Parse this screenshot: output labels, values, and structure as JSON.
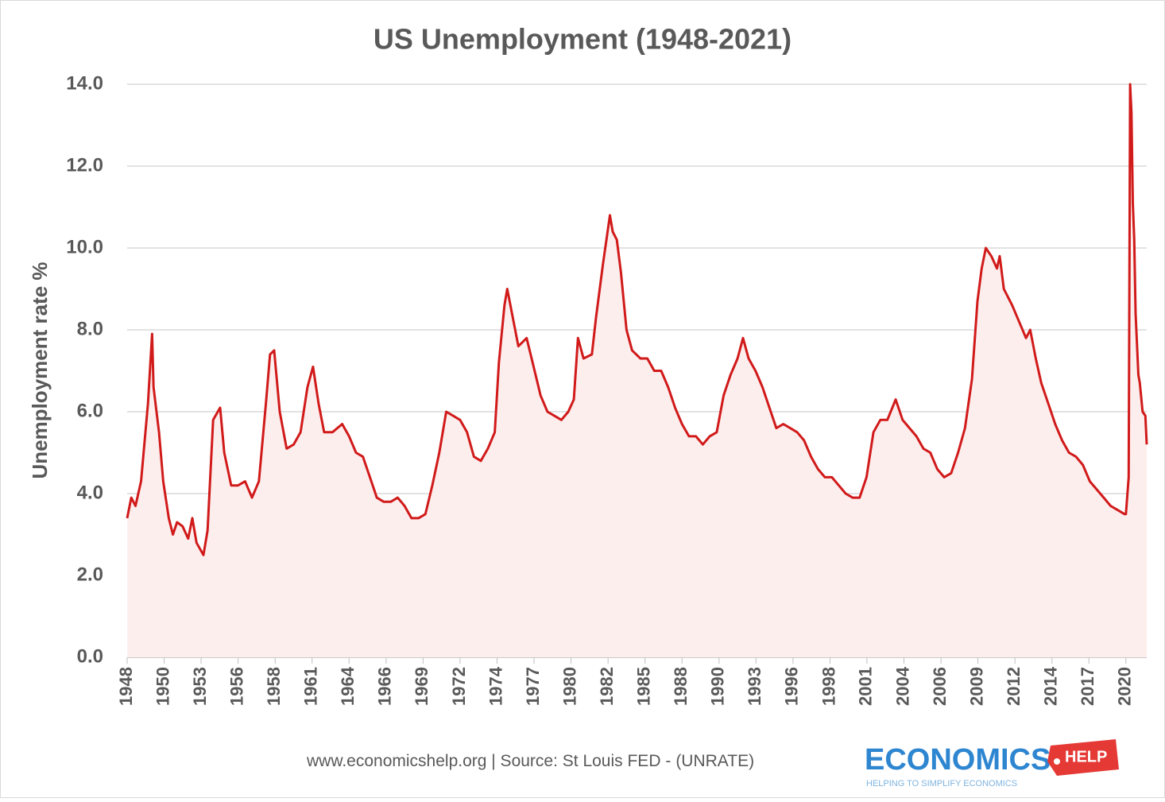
{
  "chart_data": {
    "type": "line",
    "title": "US Unemployment (1948-2021)",
    "y_label": "Unemployment rate %",
    "footer": "www.economicshelp.org  | Source: St Louis FED -",
    "footer_bold": "(UNRATE)",
    "logo": {
      "main": "ECONOMICS",
      "tag": "HELP",
      "tagline": "HELPING TO SIMPLIFY ECONOMICS"
    },
    "color": "#d11a1a",
    "fill": "#fdeeee",
    "grid": true,
    "xlim": [
      1948,
      2021.5
    ],
    "ylim": [
      0,
      14
    ],
    "yticks": [
      {
        "value": 0,
        "label": "0.0"
      },
      {
        "value": 2,
        "label": "2.0"
      },
      {
        "value": 4,
        "label": "4.0"
      },
      {
        "value": 6,
        "label": "6.0"
      },
      {
        "value": 8,
        "label": "8.0"
      },
      {
        "value": 10,
        "label": "10.0"
      },
      {
        "value": 12,
        "label": "12.0"
      },
      {
        "value": 14,
        "label": "14.0"
      }
    ],
    "xticks": [
      {
        "value": 1948,
        "label": "1948"
      },
      {
        "value": 1950.67,
        "label": "1950"
      },
      {
        "value": 1953.33,
        "label": "1953"
      },
      {
        "value": 1956,
        "label": "1956"
      },
      {
        "value": 1958.67,
        "label": "1958"
      },
      {
        "value": 1961.33,
        "label": "1961"
      },
      {
        "value": 1964,
        "label": "1964"
      },
      {
        "value": 1966.67,
        "label": "1966"
      },
      {
        "value": 1969.33,
        "label": "1969"
      },
      {
        "value": 1972,
        "label": "1972"
      },
      {
        "value": 1974.67,
        "label": "1974"
      },
      {
        "value": 1977.33,
        "label": "1977"
      },
      {
        "value": 1980,
        "label": "1980"
      },
      {
        "value": 1982.67,
        "label": "1982"
      },
      {
        "value": 1985.33,
        "label": "1985"
      },
      {
        "value": 1988,
        "label": "1988"
      },
      {
        "value": 1990.67,
        "label": "1990"
      },
      {
        "value": 1993.33,
        "label": "1993"
      },
      {
        "value": 1996,
        "label": "1996"
      },
      {
        "value": 1998.67,
        "label": "1998"
      },
      {
        "value": 2001.33,
        "label": "2001"
      },
      {
        "value": 2004,
        "label": "2004"
      },
      {
        "value": 2006.67,
        "label": "2006"
      },
      {
        "value": 2009.33,
        "label": "2009"
      },
      {
        "value": 2012,
        "label": "2012"
      },
      {
        "value": 2014.67,
        "label": "2014"
      },
      {
        "value": 2017.33,
        "label": "2017"
      },
      {
        "value": 2020,
        "label": "2020"
      }
    ],
    "x": [
      1948.0,
      1948.3,
      1948.6,
      1949.0,
      1949.5,
      1949.8,
      1949.9,
      1950.3,
      1950.6,
      1951.0,
      1951.3,
      1951.6,
      1952.0,
      1952.4,
      1952.7,
      1953.0,
      1953.5,
      1953.8,
      1954.2,
      1954.7,
      1955.0,
      1955.5,
      1956.0,
      1956.5,
      1957.0,
      1957.5,
      1958.0,
      1958.3,
      1958.6,
      1959.0,
      1959.5,
      1960.0,
      1960.5,
      1961.0,
      1961.4,
      1961.8,
      1962.2,
      1962.8,
      1963.5,
      1964.0,
      1964.5,
      1965.0,
      1965.5,
      1966.0,
      1966.5,
      1967.0,
      1967.5,
      1968.0,
      1968.5,
      1969.0,
      1969.5,
      1970.0,
      1970.5,
      1971.0,
      1971.5,
      1972.0,
      1972.5,
      1973.0,
      1973.5,
      1974.0,
      1974.5,
      1974.8,
      1975.2,
      1975.4,
      1975.8,
      1976.2,
      1976.8,
      1977.3,
      1977.8,
      1978.3,
      1978.8,
      1979.3,
      1979.8,
      1980.2,
      1980.5,
      1980.9,
      1981.5,
      1981.8,
      1982.3,
      1982.8,
      1983.0,
      1983.3,
      1983.6,
      1984.0,
      1984.4,
      1985.0,
      1985.5,
      1986.0,
      1986.5,
      1987.0,
      1987.5,
      1988.0,
      1988.5,
      1989.0,
      1989.5,
      1990.0,
      1990.5,
      1991.0,
      1991.5,
      1992.0,
      1992.4,
      1992.8,
      1993.3,
      1993.8,
      1994.3,
      1994.8,
      1995.3,
      1995.8,
      1996.3,
      1996.8,
      1997.3,
      1997.8,
      1998.3,
      1998.8,
      1999.3,
      1999.8,
      2000.3,
      2000.8,
      2001.3,
      2001.8,
      2002.3,
      2002.8,
      2003.4,
      2003.9,
      2004.4,
      2004.9,
      2005.4,
      2005.9,
      2006.4,
      2006.9,
      2007.4,
      2007.9,
      2008.4,
      2008.9,
      2009.3,
      2009.6,
      2009.9,
      2010.3,
      2010.7,
      2010.9,
      2011.2,
      2011.8,
      2012.3,
      2012.8,
      2013.1,
      2013.5,
      2013.9,
      2014.4,
      2014.9,
      2015.4,
      2015.9,
      2016.4,
      2016.9,
      2017.4,
      2017.9,
      2018.4,
      2018.9,
      2019.4,
      2019.9,
      2020.0,
      2020.2,
      2020.3,
      2020.4,
      2020.5,
      2020.6,
      2020.7,
      2020.9,
      2021.0,
      2021.2,
      2021.4,
      2021.5
    ],
    "values": [
      3.4,
      3.9,
      3.7,
      4.3,
      6.2,
      7.9,
      6.6,
      5.5,
      4.3,
      3.4,
      3.0,
      3.3,
      3.2,
      2.9,
      3.4,
      2.8,
      2.5,
      3.1,
      5.8,
      6.1,
      5.0,
      4.2,
      4.2,
      4.3,
      3.9,
      4.3,
      6.2,
      7.4,
      7.5,
      6.0,
      5.1,
      5.2,
      5.5,
      6.6,
      7.1,
      6.2,
      5.5,
      5.5,
      5.7,
      5.4,
      5.0,
      4.9,
      4.4,
      3.9,
      3.8,
      3.8,
      3.9,
      3.7,
      3.4,
      3.4,
      3.5,
      4.2,
      5.0,
      6.0,
      5.9,
      5.8,
      5.5,
      4.9,
      4.8,
      5.1,
      5.5,
      7.2,
      8.6,
      9.0,
      8.3,
      7.6,
      7.8,
      7.1,
      6.4,
      6.0,
      5.9,
      5.8,
      6.0,
      6.3,
      7.8,
      7.3,
      7.4,
      8.3,
      9.6,
      10.8,
      10.4,
      10.2,
      9.4,
      8.0,
      7.5,
      7.3,
      7.3,
      7.0,
      7.0,
      6.6,
      6.1,
      5.7,
      5.4,
      5.4,
      5.2,
      5.4,
      5.5,
      6.4,
      6.9,
      7.3,
      7.8,
      7.3,
      7.0,
      6.6,
      6.1,
      5.6,
      5.7,
      5.6,
      5.5,
      5.3,
      4.9,
      4.6,
      4.4,
      4.4,
      4.2,
      4.0,
      3.9,
      3.9,
      4.4,
      5.5,
      5.8,
      5.8,
      6.3,
      5.8,
      5.6,
      5.4,
      5.1,
      5.0,
      4.6,
      4.4,
      4.5,
      5.0,
      5.6,
      6.8,
      8.7,
      9.5,
      10.0,
      9.8,
      9.5,
      9.8,
      9.0,
      8.6,
      8.2,
      7.8,
      8.0,
      7.3,
      6.7,
      6.2,
      5.7,
      5.3,
      5.0,
      4.9,
      4.7,
      4.3,
      4.1,
      3.9,
      3.7,
      3.6,
      3.5,
      3.5,
      4.4,
      14.0,
      13.3,
      11.1,
      10.2,
      8.4,
      6.9,
      6.7,
      6.0,
      5.9,
      5.2
    ]
  }
}
